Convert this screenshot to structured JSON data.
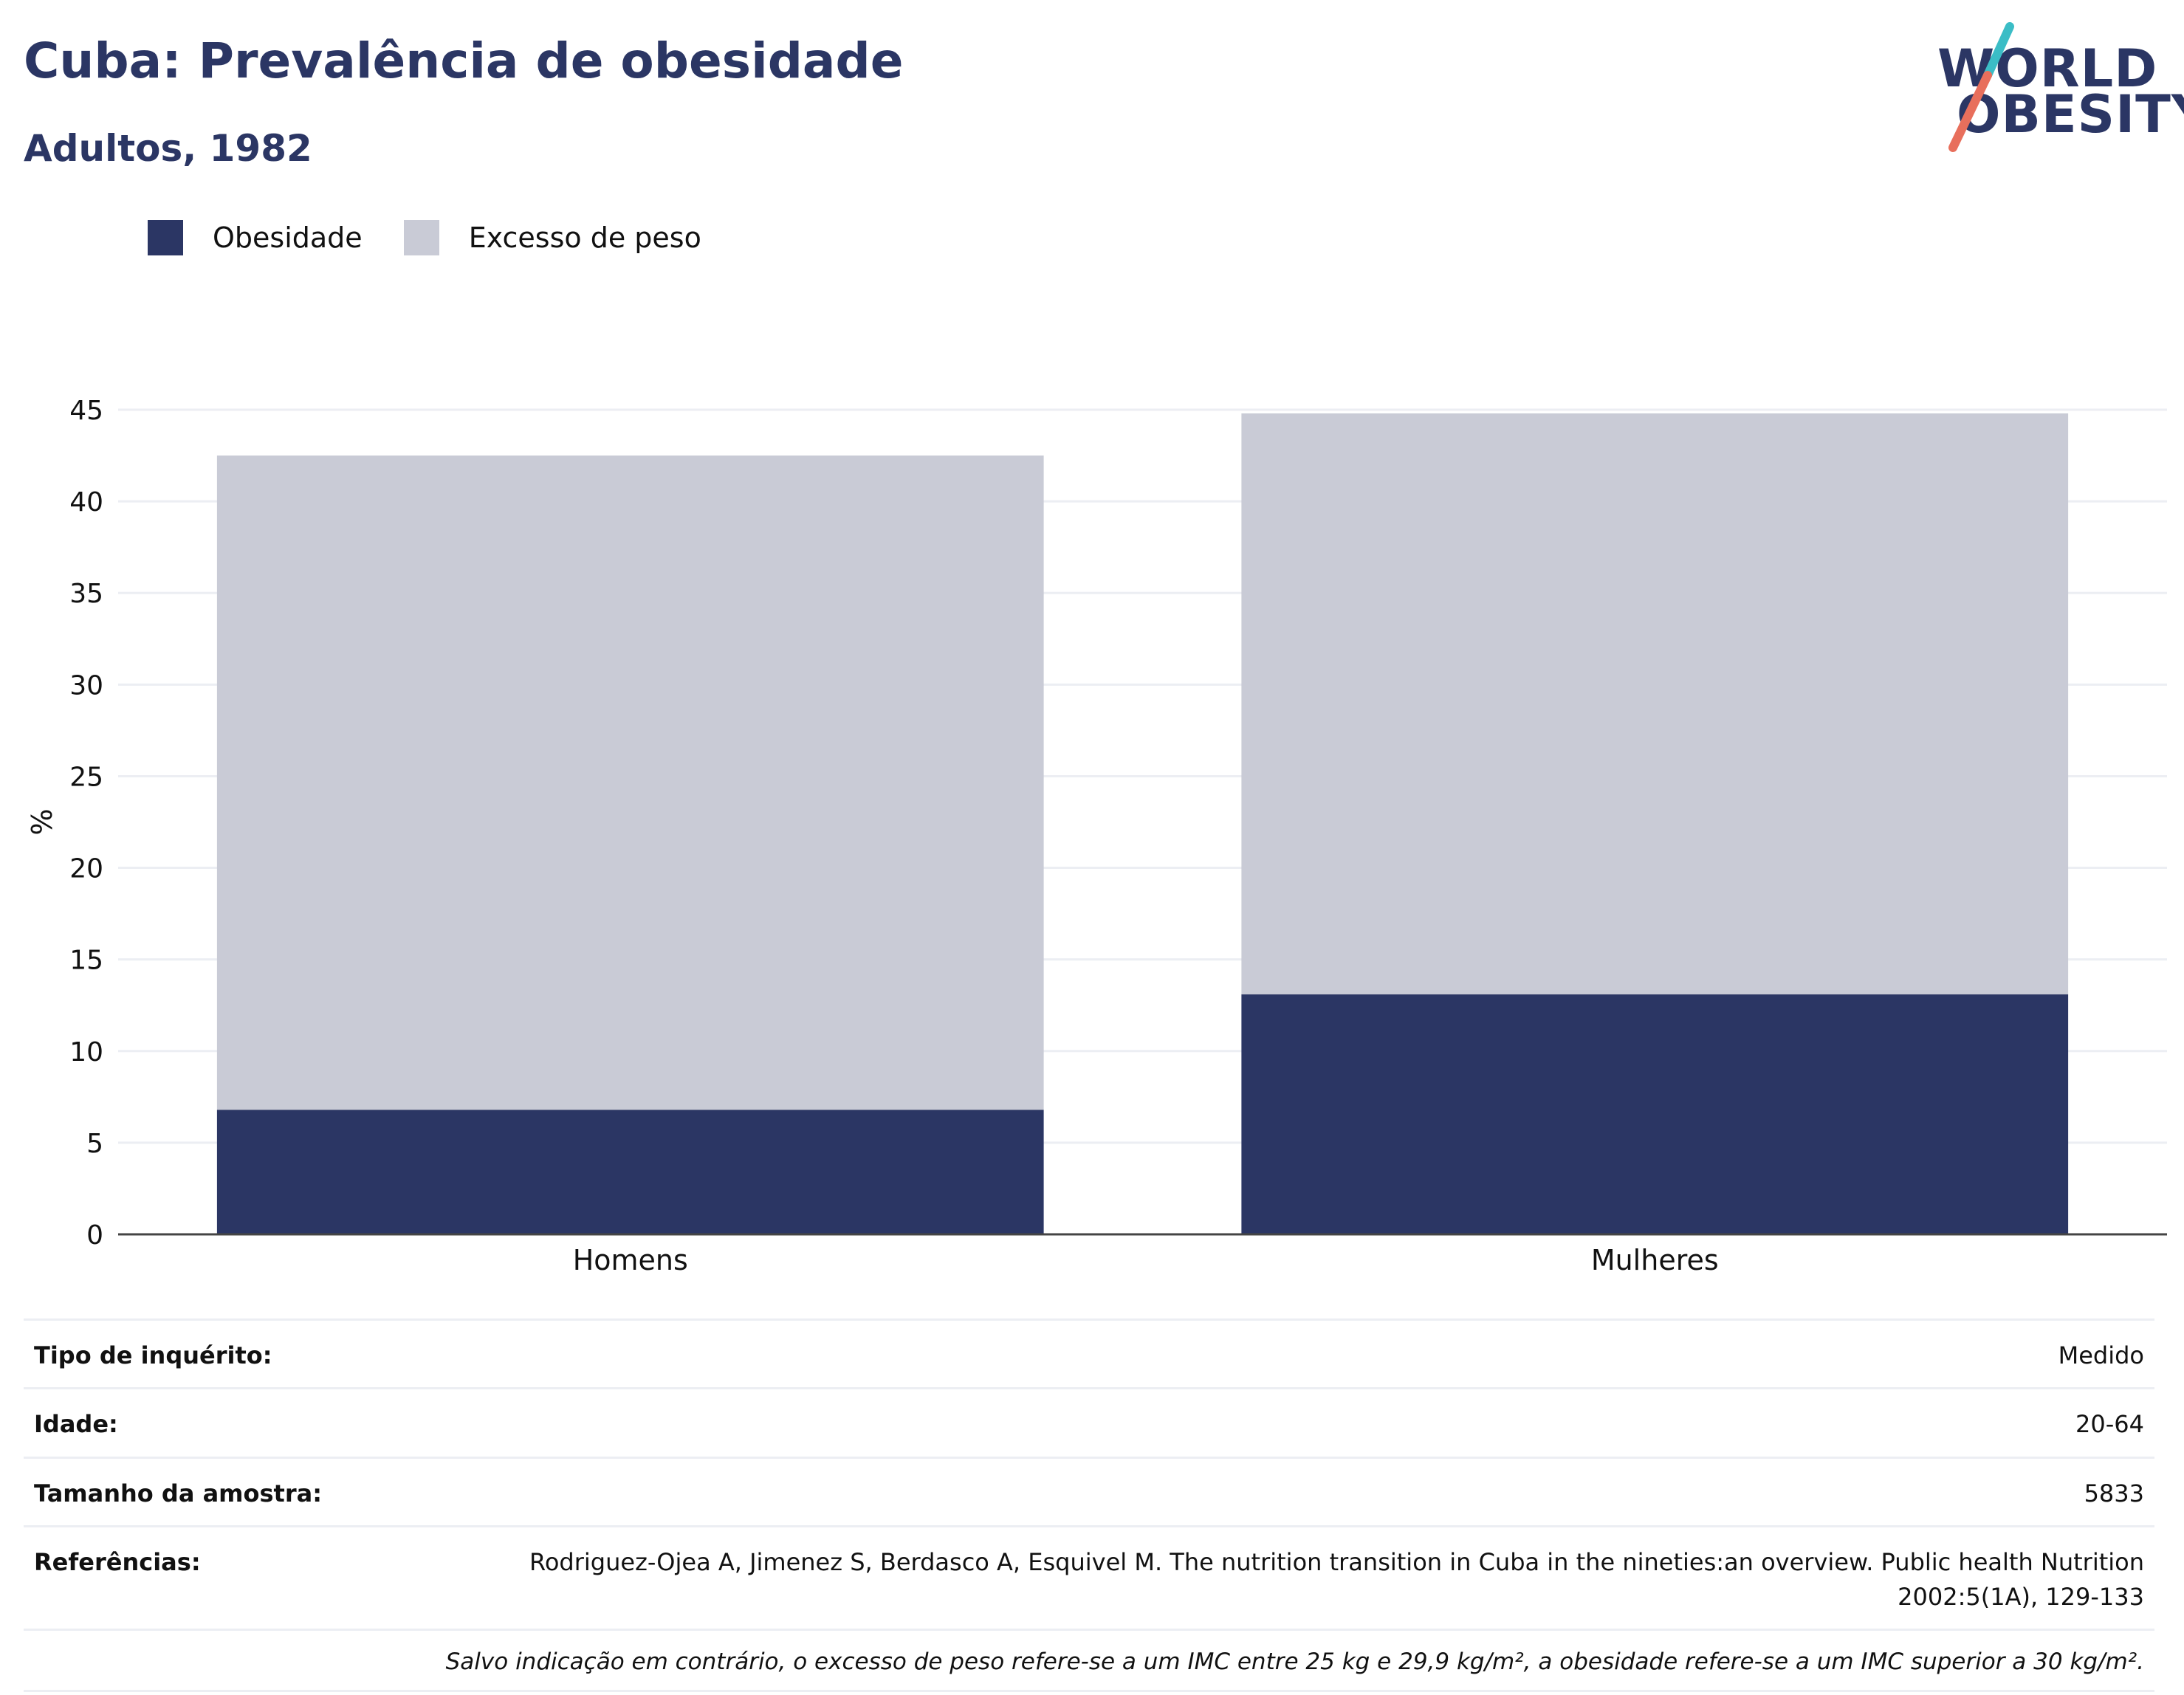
{
  "header": {
    "title": "Cuba: Prevalência de obesidade",
    "subtitle": "Adultos, 1982"
  },
  "logo": {
    "line1": "WORLD",
    "line2": "OBESITY"
  },
  "colors": {
    "obesity": "#2b3664",
    "overweight": "#c9cbd6",
    "title": "#2b3664",
    "logo_slash_top": "#3bbdc6",
    "logo_slash_bottom": "#e86f5c",
    "grid": "#eceef3",
    "axis": "#444444"
  },
  "legend": {
    "obesity_label": "Obesidade",
    "overweight_label": "Excesso de peso"
  },
  "chart_data": {
    "type": "bar",
    "stacked": true,
    "categories": [
      "Homens",
      "Mulheres"
    ],
    "series": [
      {
        "name": "Obesidade",
        "values": [
          6.8,
          13.1
        ],
        "color": "#2b3664"
      },
      {
        "name": "Excesso de peso",
        "values": [
          35.7,
          31.7
        ],
        "color": "#c9cbd6"
      }
    ],
    "ylabel": "%",
    "ylim": [
      0,
      45
    ],
    "yticks": [
      0,
      5,
      10,
      15,
      20,
      25,
      30,
      35,
      40,
      45
    ],
    "grid": true,
    "legend_position": "top-left"
  },
  "info": {
    "survey_type_label": "Tipo de inquérito:",
    "survey_type_value": "Medido",
    "age_label": "Idade:",
    "age_value": "20-64",
    "sample_label": "Tamanho da amostra:",
    "sample_value": "5833",
    "references_label": "Referências:",
    "references_value": "Rodriguez-Ojea A, Jimenez S, Berdasco A, Esquivel M. The nutrition transition in Cuba in the nineties:an overview. Public health Nutrition 2002:5(1A), 129-133",
    "note": "Salvo indicação em contrário, o excesso de peso refere-se a um IMC entre 25 kg e 29,9 kg/m², a obesidade refere-se a um IMC superior a 30 kg/m²."
  }
}
